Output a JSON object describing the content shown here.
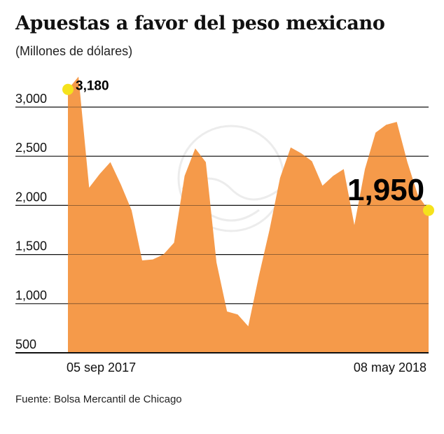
{
  "header": {
    "title": "Apuestas a favor del peso mexicano",
    "subtitle": "(Millones de dólares)"
  },
  "footer": {
    "source": "Fuente: Bolsa Mercantil de Chicago"
  },
  "colors": {
    "area": "#f59a4a",
    "marker": "#f5e21c",
    "grid": "#111111"
  },
  "chart_data": {
    "type": "area",
    "title": "Apuestas a favor del peso mexicano",
    "ylabel": "Millones de dólares",
    "ylim": [
      500,
      3200
    ],
    "yticks": [
      500,
      1000,
      1500,
      2000,
      2500,
      3000
    ],
    "ytick_labels": [
      "500",
      "1,000",
      "1,500",
      "2,000",
      "2,500",
      "3,000"
    ],
    "x_start_label": "05 sep 2017",
    "x_end_label": "08 may 2018",
    "series": [
      {
        "name": "Apuestas a favor del peso mexicano",
        "values": [
          3180,
          3310,
          2180,
          2320,
          2440,
          2210,
          1950,
          1440,
          1450,
          1500,
          1620,
          2300,
          2580,
          2440,
          1420,
          920,
          890,
          770,
          1280,
          1750,
          2280,
          2590,
          2530,
          2450,
          2200,
          2300,
          2370,
          1800,
          2370,
          2740,
          2820,
          2850,
          2440,
          2100,
          1950
        ]
      }
    ],
    "annotations": [
      {
        "label": "3,180",
        "value": 3180,
        "point": "first"
      },
      {
        "label": "1,950",
        "value": 1950,
        "point": "last"
      }
    ]
  }
}
